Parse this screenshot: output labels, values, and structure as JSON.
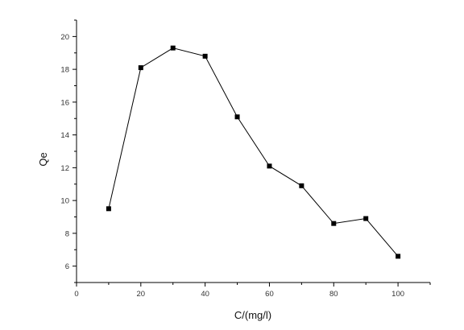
{
  "chart_data": {
    "type": "line",
    "title": "",
    "xlabel": "C/(mg/l)",
    "ylabel": "Qe",
    "xlim": [
      0,
      110
    ],
    "ylim": [
      5,
      21
    ],
    "xticks": [
      0,
      20,
      40,
      60,
      80,
      100
    ],
    "yticks": [
      6,
      8,
      10,
      12,
      14,
      16,
      18,
      20
    ],
    "xtick_labels": [
      "0",
      "20",
      "40",
      "60",
      "80",
      "100"
    ],
    "ytick_labels": [
      "6",
      "8",
      "10",
      "12",
      "14",
      "16",
      "18",
      "20"
    ],
    "grid": false,
    "legend": "none",
    "marker": "square",
    "colors": {
      "line": "#000000",
      "marker": "#000000",
      "axis": "#000000"
    },
    "series": [
      {
        "x": [
          10,
          20,
          30,
          40,
          50,
          60,
          70,
          80,
          90,
          100
        ],
        "y": [
          9.5,
          18.1,
          19.3,
          18.8,
          15.1,
          12.1,
          10.9,
          8.6,
          8.9,
          6.6
        ]
      }
    ]
  }
}
